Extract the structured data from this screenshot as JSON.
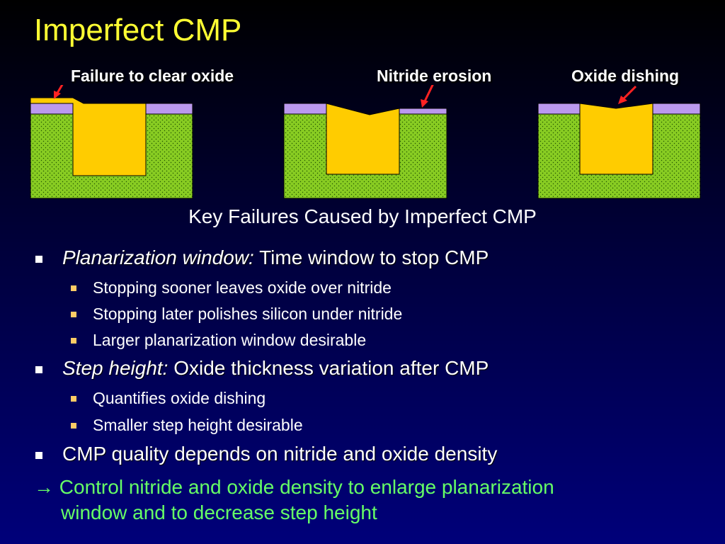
{
  "title": "Imperfect CMP",
  "labels": {
    "failure_to_clear": "Failure to clear oxide",
    "nitride_erosion": "Nitride erosion",
    "oxide_dishing": "Oxide dishing"
  },
  "subtitle": "Key Failures Caused by Imperfect CMP",
  "bullets": [
    {
      "lead": "Planarization window:",
      "text": " Time window to stop CMP",
      "sub": [
        "Stopping sooner leaves oxide over nitride",
        "Stopping later polishes silicon under nitride",
        "Larger planarization window desirable"
      ]
    },
    {
      "lead": "Step height:",
      "text": " Oxide thickness variation after CMP",
      "sub": [
        "Quantifies oxide dishing",
        "Smaller step height desirable"
      ]
    },
    {
      "lead": "",
      "text": "CMP quality depends on nitride and oxide density",
      "sub": []
    }
  ],
  "conclusion": {
    "arrow": "→",
    "line1": " Control nitride and oxide density to enlarge planarization",
    "line2": "window and to decrease step height"
  },
  "colors": {
    "title": "#ffff33",
    "silicon": "#88cc22",
    "nitride": "#bb99ee",
    "oxide": "#ffcc00",
    "arrow": "#ff2222",
    "conclusion": "#66ff66"
  }
}
